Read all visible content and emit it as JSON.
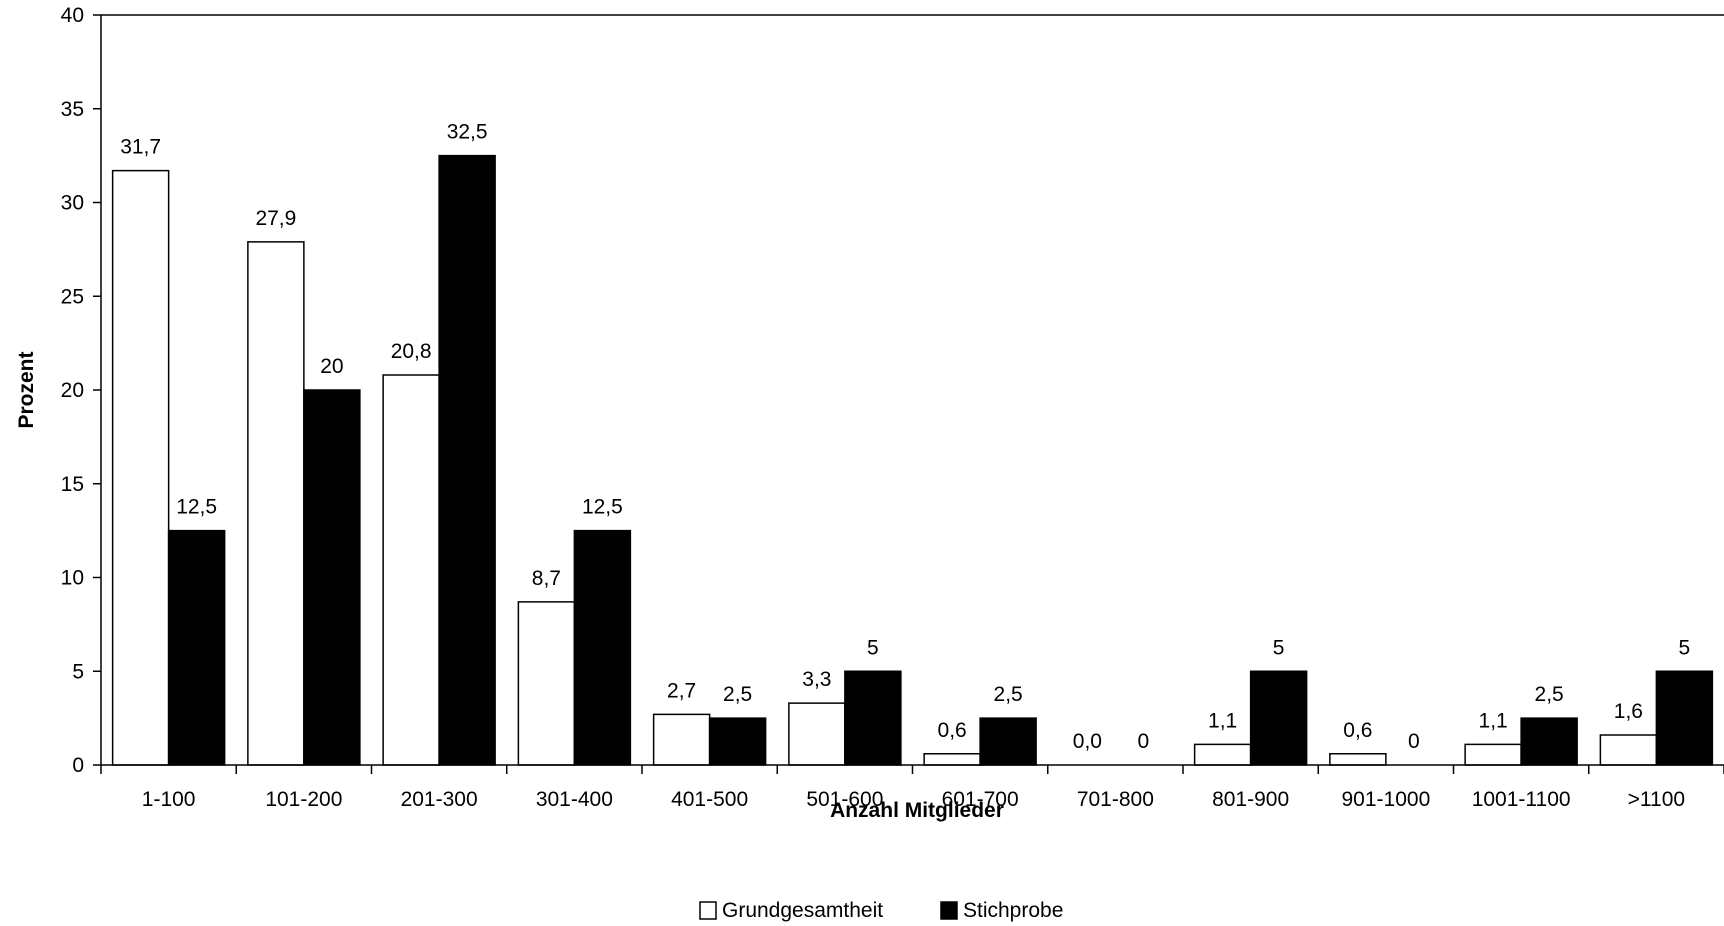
{
  "chart_data": {
    "type": "bar",
    "title": "",
    "xlabel": "Anzahl Mitglieder",
    "ylabel": "Prozent",
    "ylim": [
      0,
      40
    ],
    "yticks": [
      0,
      5,
      10,
      15,
      20,
      25,
      30,
      35,
      40
    ],
    "grid": false,
    "legend_position": "bottom-center",
    "categories": [
      "1-100",
      "101-200",
      "201-300",
      "301-400",
      "401-500",
      "501-600",
      "601-700",
      "701-800",
      "801-900",
      "901-1000",
      "1001-1100",
      ">1100"
    ],
    "series": [
      {
        "name": "Grundgesamtheit",
        "color": "#ffffff",
        "stroke": "#000000",
        "values": [
          31.7,
          27.9,
          20.8,
          8.7,
          2.7,
          3.3,
          0.6,
          0.0,
          1.1,
          0.6,
          1.1,
          1.6
        ],
        "labels": [
          "31,7",
          "27,9",
          "20,8",
          "8,7",
          "2,7",
          "3,3",
          "0,6",
          "0,0",
          "1,1",
          "0,6",
          "1,1",
          "1,6"
        ]
      },
      {
        "name": "Stichprobe",
        "color": "#000000",
        "stroke": "#000000",
        "values": [
          12.5,
          20,
          32.5,
          12.5,
          2.5,
          5,
          2.5,
          0,
          5,
          0,
          2.5,
          5
        ],
        "labels": [
          "12,5",
          "20",
          "32,5",
          "12,5",
          "2,5",
          "5",
          "2,5",
          "0",
          "5",
          "0",
          "2,5",
          "5"
        ]
      }
    ]
  }
}
